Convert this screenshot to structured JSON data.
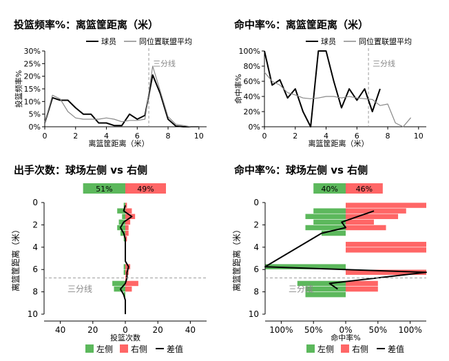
{
  "colors": {
    "player_line": "#000000",
    "league_line": "#888888",
    "left": "#5cb85c",
    "right": "#ff6666",
    "threshold_line": "#999999",
    "axis": "#000000"
  },
  "chart_data": [
    {
      "type": "line",
      "title": "投篮频率%：离篮筐距离（米）",
      "xlabel": "离篮筐距离（米）",
      "ylabel": "投篮频率%",
      "xlim": [
        0,
        10.5
      ],
      "ylim": [
        0,
        30
      ],
      "xticks": [
        "0",
        "2",
        "4",
        "6",
        "8",
        "10"
      ],
      "yticks": [
        "0%",
        "5%",
        "10%",
        "15%",
        "20%",
        "25%",
        "30%"
      ],
      "threshold": {
        "x": 6.75,
        "label": "三分线"
      },
      "legend": [
        "球员",
        "同位置联盟平均"
      ],
      "series": [
        {
          "name": "球员",
          "x": [
            0,
            0.5,
            1,
            1.5,
            2,
            2.5,
            3,
            3.5,
            4,
            4.5,
            5,
            5.5,
            6,
            6.5,
            7,
            7.5,
            8,
            8.5,
            9,
            9.5,
            10
          ],
          "values": [
            1.5,
            11.5,
            10.5,
            10.5,
            7.5,
            5,
            5,
            1.5,
            1.5,
            0.5,
            0.5,
            5,
            3,
            4.5,
            20.5,
            13,
            3,
            0.3,
            0,
            0,
            0
          ]
        },
        {
          "name": "同位置联盟平均",
          "x": [
            0,
            0.5,
            1,
            1.5,
            2,
            2.5,
            3,
            3.5,
            4,
            4.5,
            5,
            5.5,
            6,
            6.5,
            7,
            7.5,
            8,
            8.5,
            9,
            9.5,
            10
          ],
          "values": [
            1.5,
            12.5,
            11,
            6,
            3.5,
            3,
            3,
            3,
            3.5,
            3,
            2,
            2.5,
            2.5,
            3,
            24,
            14,
            4,
            1,
            0.5,
            0,
            0
          ]
        }
      ]
    },
    {
      "type": "line",
      "title": "命中率%：离篮筐距离（米）",
      "xlabel": "离篮筐距离（米）",
      "ylabel": "命中率%",
      "xlim": [
        0,
        10.5
      ],
      "ylim": [
        0,
        100
      ],
      "xticks": [
        "0",
        "2",
        "4",
        "6",
        "8",
        "10"
      ],
      "yticks": [
        "0%",
        "20%",
        "40%",
        "60%",
        "80%",
        "100%"
      ],
      "threshold": {
        "x": 6.75,
        "label": "三分线"
      },
      "legend": [
        "球员",
        "同位置联盟平均"
      ],
      "series": [
        {
          "name": "球员",
          "x": [
            0,
            0.5,
            1,
            1.5,
            2,
            2.5,
            3,
            3.5,
            4,
            4.5,
            5,
            5.5,
            6,
            6.5,
            7,
            7.5,
            8
          ],
          "values": [
            100,
            55,
            62,
            38,
            50,
            20,
            0,
            100,
            100,
            60,
            25,
            50,
            35,
            50,
            20,
            50,
            null
          ]
        },
        {
          "name": "同位置联盟平均",
          "x": [
            0,
            0.5,
            1,
            1.5,
            2,
            2.5,
            3,
            3.5,
            4,
            4.5,
            5,
            5.5,
            6,
            6.5,
            7,
            7.5,
            8,
            8.5,
            9,
            9.5,
            10
          ],
          "values": [
            72,
            60,
            55,
            45,
            42,
            38,
            37,
            38,
            40,
            40,
            38,
            40,
            38,
            37,
            36,
            28,
            30,
            5,
            0,
            12,
            null
          ]
        }
      ]
    },
    {
      "type": "bar",
      "orientation": "horizontal",
      "title": "出手次数：球场左侧 vs 右侧",
      "xlabel": "投篮次数",
      "ylabel": "离篮筐距离（米）",
      "xlim": [
        -50,
        50
      ],
      "ylim": [
        0,
        10
      ],
      "xticks": [
        "40",
        "20",
        "0",
        "20",
        "40"
      ],
      "yticks": [
        "0",
        "2",
        "4",
        "6",
        "8",
        "10"
      ],
      "threshold": {
        "y": 6.75,
        "label": "三分线"
      },
      "summary": {
        "left": "51%",
        "right": "49%"
      },
      "legend": [
        "左侧",
        "右侧",
        "差值"
      ],
      "categories": [
        0,
        0.5,
        1,
        1.5,
        2,
        2.5,
        3,
        3.5,
        4,
        4.5,
        5,
        5.5,
        6,
        6.5,
        7,
        7.5,
        8,
        8.5,
        9,
        9.5
      ],
      "series": [
        {
          "name": "左侧",
          "values": [
            1,
            5,
            2,
            4,
            5,
            3,
            1,
            0,
            0,
            0,
            0,
            1,
            1,
            0,
            8,
            7,
            1,
            0,
            0,
            0
          ]
        },
        {
          "name": "右侧",
          "values": [
            1,
            4,
            6,
            3,
            2,
            2,
            1,
            0,
            0,
            0,
            0,
            3,
            2,
            1,
            8,
            4,
            0,
            0,
            0,
            0
          ]
        },
        {
          "name": "差值",
          "values": [
            0,
            -1,
            4,
            -1,
            -3,
            -1,
            0,
            0,
            0,
            0,
            0,
            2,
            1,
            1,
            0,
            -3,
            -1,
            0,
            0,
            0
          ]
        }
      ],
      "summary_bar": {
        "left_value": 26,
        "right_value": 25
      }
    },
    {
      "type": "bar",
      "orientation": "horizontal",
      "title": "命中率%：球场左侧 vs 右侧",
      "xlabel": "命中率%",
      "ylabel": "离篮筐距离（米）",
      "xlim": [
        -100,
        100
      ],
      "ylim": [
        0,
        10
      ],
      "xticks": [
        "100%",
        "50%",
        "0%",
        "50%",
        "100%"
      ],
      "yticks": [
        "0",
        "2",
        "4",
        "6",
        "8",
        "10"
      ],
      "threshold": {
        "y": 6.75,
        "label": "三分线"
      },
      "summary": {
        "left": "40%",
        "right": "46%"
      },
      "legend": [
        "左侧",
        "右侧",
        "差值"
      ],
      "categories": [
        0,
        0.5,
        1,
        1.5,
        2,
        2.5,
        3,
        3.5,
        4,
        4.5,
        5,
        5.5,
        6,
        6.5,
        7,
        7.5,
        8
      ],
      "series": [
        {
          "name": "左侧",
          "values": [
            0,
            40,
            50,
            40,
            50,
            30,
            0,
            0,
            0,
            0,
            0,
            100,
            0,
            0,
            60,
            50,
            50
          ]
        },
        {
          "name": "右侧",
          "values": [
            100,
            75,
            65,
            35,
            50,
            0,
            0,
            100,
            100,
            0,
            0,
            0,
            100,
            0,
            40,
            40,
            0
          ]
        },
        {
          "name": "差值",
          "values": [
            null,
            35,
            15,
            -5,
            0,
            -30,
            null,
            null,
            null,
            null,
            null,
            -100,
            100,
            null,
            -20,
            -10,
            null
          ]
        }
      ],
      "summary_bar": {
        "left_value": 40,
        "right_value": 46
      }
    }
  ]
}
